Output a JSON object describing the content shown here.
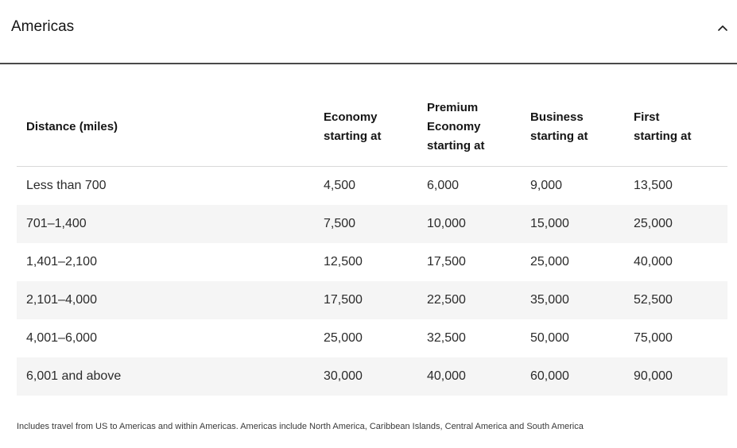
{
  "section": {
    "title": "Americas",
    "expanded": true,
    "toggle_icon": "chevron-up-icon"
  },
  "table": {
    "headers": [
      [
        "Distance (miles)"
      ],
      [
        "Economy",
        "starting at"
      ],
      [
        "Premium",
        "Economy",
        "starting at"
      ],
      [
        "Business",
        "starting at"
      ],
      [
        "First",
        "starting at"
      ]
    ],
    "rows": [
      [
        "Less than 700",
        "4,500",
        "6,000",
        "9,000",
        "13,500"
      ],
      [
        "701–1,400",
        "7,500",
        "10,000",
        "15,000",
        "25,000"
      ],
      [
        "1,401–2,100",
        "12,500",
        "17,500",
        "25,000",
        "40,000"
      ],
      [
        "2,101–4,000",
        "17,500",
        "22,500",
        "35,000",
        "52,500"
      ],
      [
        "4,001–6,000",
        "25,000",
        "32,500",
        "50,000",
        "75,000"
      ],
      [
        "6,001 and above",
        "30,000",
        "40,000",
        "60,000",
        "90,000"
      ]
    ]
  },
  "footnote": "Includes travel from US to Americas and within Americas. Americas include North America, Caribbean Islands, Central America and South America",
  "colors": {
    "divider": "#4a4a4a",
    "row_alt_bg": "#f5f5f5",
    "text": "#151515"
  }
}
